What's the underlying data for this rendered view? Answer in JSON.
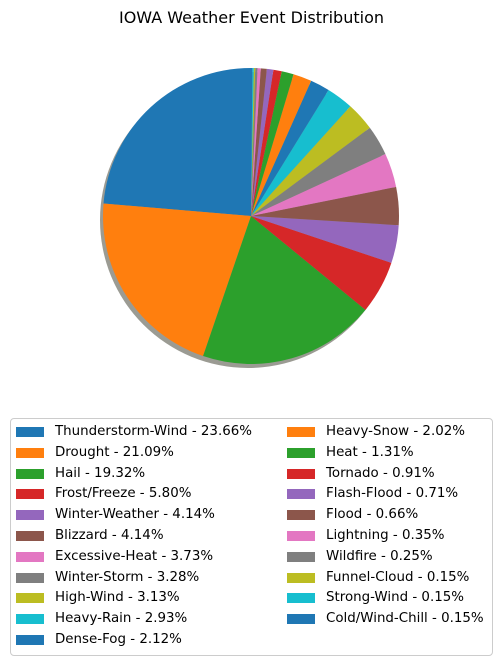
{
  "chart_data": {
    "type": "pie",
    "title": "IOWA Weather Event Distribution",
    "start_angle_deg": 90,
    "direction": "counterclockwise",
    "shadow": true,
    "legend_placement": "bottom",
    "slices": [
      {
        "label": "Thunderstorm-Wind - 23.66%",
        "value": 23.66,
        "color": "#1f77b4"
      },
      {
        "label": "Drought - 21.09%",
        "value": 21.09,
        "color": "#ff7f0e"
      },
      {
        "label": "Hail - 19.32%",
        "value": 19.32,
        "color": "#2ca02c"
      },
      {
        "label": "Frost/Freeze - 5.80%",
        "value": 5.8,
        "color": "#d62728"
      },
      {
        "label": "Winter-Weather - 4.14%",
        "value": 4.14,
        "color": "#9467bd"
      },
      {
        "label": "Blizzard - 4.14%",
        "value": 4.14,
        "color": "#8c564b"
      },
      {
        "label": "Excessive-Heat - 3.73%",
        "value": 3.73,
        "color": "#e377c2"
      },
      {
        "label": "Winter-Storm - 3.28%",
        "value": 3.28,
        "color": "#7f7f7f"
      },
      {
        "label": "High-Wind - 3.13%",
        "value": 3.13,
        "color": "#bcbd22"
      },
      {
        "label": "Heavy-Rain - 2.93%",
        "value": 2.93,
        "color": "#17becf"
      },
      {
        "label": "Dense-Fog - 2.12%",
        "value": 2.12,
        "color": "#1f77b4"
      },
      {
        "label": "Heavy-Snow - 2.02%",
        "value": 2.02,
        "color": "#ff7f0e"
      },
      {
        "label": "Heat - 1.31%",
        "value": 1.31,
        "color": "#2ca02c"
      },
      {
        "label": "Tornado - 0.91%",
        "value": 0.91,
        "color": "#d62728"
      },
      {
        "label": "Flash-Flood - 0.71%",
        "value": 0.71,
        "color": "#9467bd"
      },
      {
        "label": "Flood - 0.66%",
        "value": 0.66,
        "color": "#8c564b"
      },
      {
        "label": "Lightning - 0.35%",
        "value": 0.35,
        "color": "#e377c2"
      },
      {
        "label": "Wildfire - 0.25%",
        "value": 0.25,
        "color": "#7f7f7f"
      },
      {
        "label": "Funnel-Cloud - 0.15%",
        "value": 0.15,
        "color": "#bcbd22"
      },
      {
        "label": "Strong-Wind - 0.15%",
        "value": 0.15,
        "color": "#17becf"
      },
      {
        "label": "Cold/Wind-Chill - 0.15%",
        "value": 0.15,
        "color": "#1f77b4"
      }
    ]
  }
}
